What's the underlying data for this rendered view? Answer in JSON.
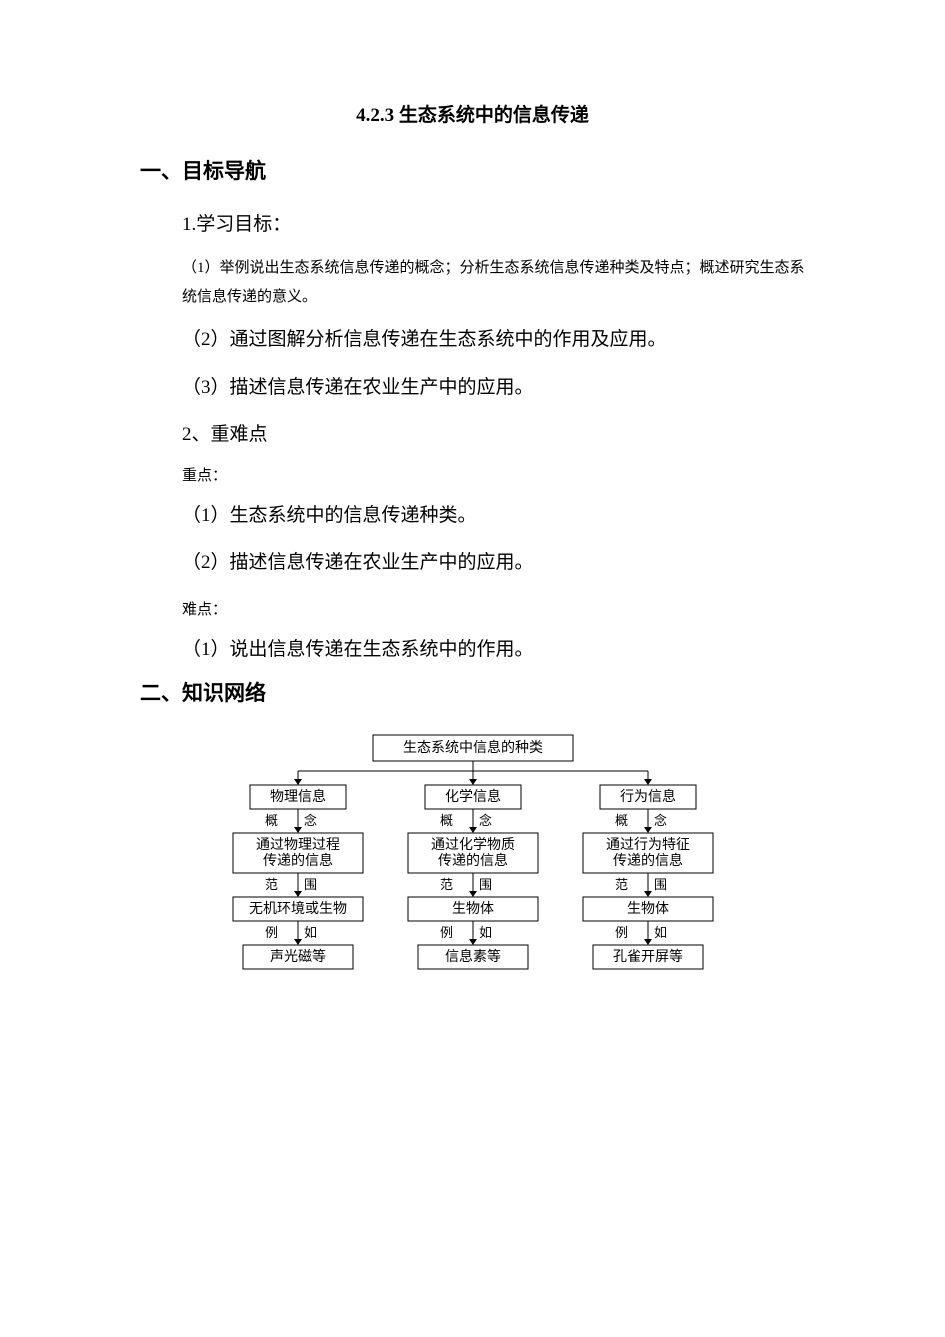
{
  "title": "4.2.3 生态系统中的信息传递",
  "section1": {
    "heading": "一、目标导航",
    "sub1": {
      "heading": "1.学习目标：",
      "item1": "（1）举例说出生态系统信息传递的概念；分析生态系统信息传递种类及特点；概述研究生态系统信息传递的意义。",
      "item2": "（2）通过图解分析信息传递在生态系统中的作用及应用。",
      "item3": "（3）描述信息传递在农业生产中的应用。"
    },
    "sub2": {
      "heading": "2、重难点",
      "label1": "重点：",
      "item1": "（1）生态系统中的信息传递种类。",
      "item2": "（2）描述信息传递在农业生产中的应用。",
      "label2": "难点：",
      "item3": "（1）说出信息传递在生态系统中的作用。"
    }
  },
  "section2": {
    "heading": "二、知识网络"
  },
  "diagram": {
    "type": "tree",
    "background_color": "#ffffff",
    "border_color": "#000000",
    "text_color": "#000000",
    "font_size": 14,
    "label_font_size": 13,
    "root": "生态系统中信息的种类",
    "connector_labels": {
      "lvl1": "概  念",
      "lvl2": "范  围",
      "lvl3": "例  如"
    },
    "columns": [
      {
        "name": "物理信息",
        "concept": [
          "通过物理过程",
          "传递的信息"
        ],
        "scope": "无机环境或生物",
        "example": "声光磁等"
      },
      {
        "name": "化学信息",
        "concept": [
          "通过化学物质",
          "传递的信息"
        ],
        "scope": "生物体",
        "example": "信息素等"
      },
      {
        "name": "行为信息",
        "concept": [
          "通过行为特征",
          "传递的信息"
        ],
        "scope": "生物体",
        "example": "孔雀开屏等"
      }
    ]
  }
}
